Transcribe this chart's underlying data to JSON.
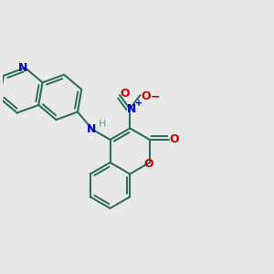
{
  "bg_color": "#e8e8e8",
  "bond_color": "#2d6e5e",
  "bond_width": 1.5,
  "dbo": 0.12,
  "atom_colors": {
    "N": "#0000cc",
    "O": "#cc0000",
    "H": "#6a9a8a",
    "Nplus": "#0000cc"
  },
  "font_size": 9,
  "fig_size": [
    3.0,
    3.0
  ]
}
